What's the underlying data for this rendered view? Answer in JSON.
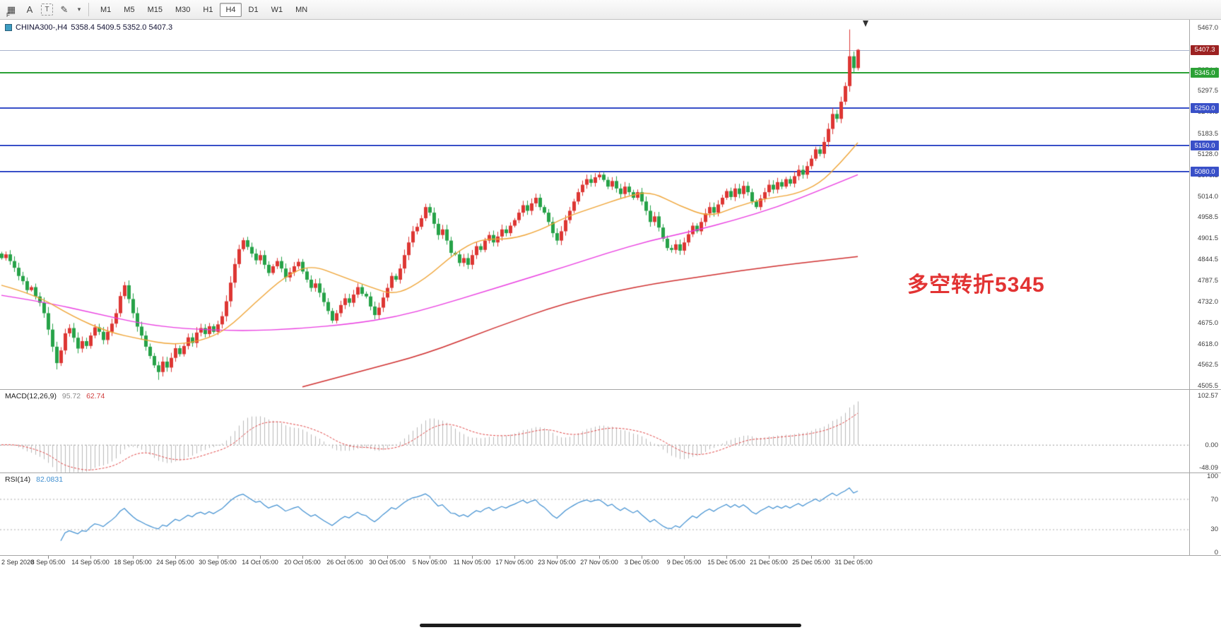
{
  "toolbar": {
    "f_badge": "F",
    "icons": [
      {
        "name": "chart-layout-icon",
        "glyph": "▦",
        "cls": ""
      },
      {
        "name": "annotate-a-icon",
        "glyph": "A",
        "cls": ""
      },
      {
        "name": "text-tool-icon",
        "glyph": "T",
        "cls": "boxed"
      },
      {
        "name": "draw-tool-icon",
        "glyph": "✎",
        "cls": ""
      },
      {
        "name": "draw-tool-caret-icon",
        "glyph": "▾",
        "cls": "caret"
      }
    ],
    "timeframes": [
      {
        "label": "M1",
        "active": false
      },
      {
        "label": "M5",
        "active": false
      },
      {
        "label": "M15",
        "active": false
      },
      {
        "label": "M30",
        "active": false
      },
      {
        "label": "H1",
        "active": false
      },
      {
        "label": "H4",
        "active": true
      },
      {
        "label": "D1",
        "active": false
      },
      {
        "label": "W1",
        "active": false
      },
      {
        "label": "MN",
        "active": false
      }
    ]
  },
  "chart": {
    "symbol_title": "CHINA300-,H4",
    "ohlc_text": "5358.4 5409.5 5352.0 5407.3",
    "annotation": {
      "text": "多空转折5345",
      "color": "#e23333"
    },
    "colors": {
      "up": "#dd3633",
      "down": "#26a248",
      "ma_fast": "#efa436",
      "ma_mid": "#e93ce0",
      "ma_slow": "#cf2f2f",
      "macd_hist": "#b9b9b9",
      "macd_signal": "#e04545",
      "rsi": "#3e8ed0",
      "level_blue": "#3950c8",
      "level_green": "#2ba135",
      "last_price_line": "#a9b2cc",
      "last_price_tag": "#9c2121"
    }
  },
  "chart_data": {
    "type": "candlestick",
    "title": "CHINA300- H4",
    "convention": "red=up, green=down",
    "first_open": 4860,
    "last_bar": {
      "open": 5358.4,
      "high": 5409.5,
      "low": 5352.0,
      "close": 5407.3
    },
    "closes": [
      4848,
      4858,
      4840,
      4822,
      4800,
      4786,
      4762,
      4770,
      4745,
      4728,
      4700,
      4656,
      4610,
      4566,
      4600,
      4646,
      4660,
      4634,
      4605,
      4625,
      4612,
      4640,
      4662,
      4650,
      4628,
      4650,
      4672,
      4700,
      4746,
      4775,
      4738,
      4700,
      4664,
      4640,
      4610,
      4585,
      4560,
      4542,
      4570,
      4554,
      4580,
      4606,
      4590,
      4612,
      4635,
      4620,
      4648,
      4660,
      4644,
      4665,
      4650,
      4670,
      4692,
      4732,
      4782,
      4832,
      4872,
      4896,
      4878,
      4860,
      4842,
      4856,
      4830,
      4808,
      4826,
      4840,
      4820,
      4796,
      4810,
      4826,
      4838,
      4812,
      4790,
      4768,
      4780,
      4755,
      4730,
      4706,
      4680,
      4700,
      4722,
      4740,
      4728,
      4750,
      4770,
      4752,
      4745,
      4718,
      4695,
      4715,
      4742,
      4768,
      4800,
      4790,
      4820,
      4856,
      4890,
      4920,
      4932,
      4955,
      4985,
      4970,
      4940,
      4910,
      4925,
      4895,
      4862,
      4858,
      4835,
      4848,
      4830,
      4856,
      4880,
      4870,
      4895,
      4910,
      4890,
      4906,
      4925,
      4915,
      4935,
      4950,
      4970,
      4990,
      4975,
      4995,
      5010,
      4985,
      4970,
      4945,
      4915,
      4895,
      4920,
      4950,
      4975,
      5000,
      5025,
      5045,
      5060,
      5050,
      5065,
      5072,
      5058,
      5040,
      5055,
      5035,
      5020,
      5040,
      5025,
      5010,
      5025,
      5000,
      4975,
      4945,
      4960,
      4930,
      4900,
      4875,
      4870,
      4885,
      4868,
      4890,
      4912,
      4935,
      4920,
      4945,
      4968,
      4985,
      4970,
      4992,
      5010,
      5028,
      5012,
      5035,
      5020,
      5042,
      5025,
      5000,
      4985,
      5008,
      5025,
      5045,
      5032,
      5052,
      5040,
      5060,
      5048,
      5068,
      5085,
      5072,
      5095,
      5115,
      5140,
      5128,
      5160,
      5195,
      5235,
      5222,
      5268,
      5310,
      5390,
      5358.4,
      5407.3
    ],
    "high_overrides": {
      "200": 5462
    },
    "low_overrides": {
      "13": 4549,
      "37": 4521
    },
    "levels": [
      {
        "price": 5345.0,
        "label": "5345.0",
        "kind": "green"
      },
      {
        "price": 5250.0,
        "label": "5250.0",
        "kind": "blue"
      },
      {
        "price": 5150.0,
        "label": "5150.0",
        "kind": "blue"
      },
      {
        "price": 5080.0,
        "label": "5080.0",
        "kind": "blue"
      }
    ],
    "last_price": {
      "value": 5407.3,
      "label": "5407.3"
    },
    "price_axis": {
      "min": 4496,
      "max": 5488,
      "ticks": [
        "5467.0",
        "5410.5",
        "5354.0",
        "5297.5",
        "5240.5",
        "5183.5",
        "5128.0",
        "5070.5",
        "5014.0",
        "4958.5",
        "4901.5",
        "4844.5",
        "4787.5",
        "4732.0",
        "4675.0",
        "4618.0",
        "4562.5",
        "4505.5"
      ]
    },
    "ma_fast_points": [
      [
        0,
        4775
      ],
      [
        8,
        4750
      ],
      [
        17,
        4690
      ],
      [
        25,
        4650
      ],
      [
        33,
        4630
      ],
      [
        40,
        4615
      ],
      [
        47,
        4625
      ],
      [
        53,
        4655
      ],
      [
        60,
        4730
      ],
      [
        67,
        4800
      ],
      [
        73,
        4830
      ],
      [
        80,
        4800
      ],
      [
        87,
        4770
      ],
      [
        93,
        4748
      ],
      [
        100,
        4792
      ],
      [
        107,
        4862
      ],
      [
        113,
        4900
      ],
      [
        120,
        4898
      ],
      [
        127,
        4922
      ],
      [
        133,
        4958
      ],
      [
        140,
        4985
      ],
      [
        147,
        5012
      ],
      [
        153,
        5028
      ],
      [
        160,
        4988
      ],
      [
        167,
        4958
      ],
      [
        173,
        4985
      ],
      [
        180,
        5008
      ],
      [
        187,
        5018
      ],
      [
        193,
        5048
      ],
      [
        198,
        5105
      ],
      [
        202,
        5158
      ]
    ],
    "ma_mid_points": [
      [
        0,
        4748
      ],
      [
        10,
        4730
      ],
      [
        22,
        4700
      ],
      [
        33,
        4672
      ],
      [
        43,
        4658
      ],
      [
        57,
        4652
      ],
      [
        70,
        4658
      ],
      [
        83,
        4672
      ],
      [
        93,
        4690
      ],
      [
        103,
        4720
      ],
      [
        113,
        4755
      ],
      [
        123,
        4790
      ],
      [
        133,
        4825
      ],
      [
        143,
        4862
      ],
      [
        153,
        4895
      ],
      [
        163,
        4920
      ],
      [
        173,
        4950
      ],
      [
        183,
        4985
      ],
      [
        193,
        5030
      ],
      [
        202,
        5072
      ]
    ],
    "ma_slow_points": [
      [
        71,
        4502
      ],
      [
        85,
        4545
      ],
      [
        100,
        4590
      ],
      [
        116,
        4660
      ],
      [
        133,
        4728
      ],
      [
        150,
        4772
      ],
      [
        166,
        4800
      ],
      [
        183,
        4828
      ],
      [
        202,
        4852
      ]
    ],
    "macd": {
      "label": "MACD(12,26,9)",
      "value_main": "95.72",
      "value_signal": "62.74",
      "params": {
        "fast": 12,
        "slow": 26,
        "signal": 9
      },
      "axis": {
        "max": "102.57",
        "zero": "0.00",
        "min": "-48.09"
      },
      "scale": {
        "vmax": 115,
        "vmin": -58
      }
    },
    "rsi": {
      "label": "RSI(14)",
      "value": "82.0831",
      "period": 14,
      "levels": [
        70,
        30
      ],
      "axis_ticks": [
        "100",
        "70",
        "30",
        "0"
      ],
      "scale": {
        "vmax": 104,
        "vmin": -4
      }
    },
    "time_axis": [
      "2 Sep 2020",
      "8 Sep 05:00",
      "14 Sep 05:00",
      "18 Sep 05:00",
      "24 Sep 05:00",
      "30 Sep 05:00",
      "14 Oct 05:00",
      "20 Oct 05:00",
      "26 Oct 05:00",
      "30 Oct 05:00",
      "5 Nov 05:00",
      "11 Nov 05:00",
      "17 Nov 05:00",
      "23 Nov 05:00",
      "27 Nov 05:00",
      "3 Dec 05:00",
      "9 Dec 05:00",
      "15 Dec 05:00",
      "21 Dec 05:00",
      "25 Dec 05:00",
      "31 Dec 05:00"
    ]
  }
}
